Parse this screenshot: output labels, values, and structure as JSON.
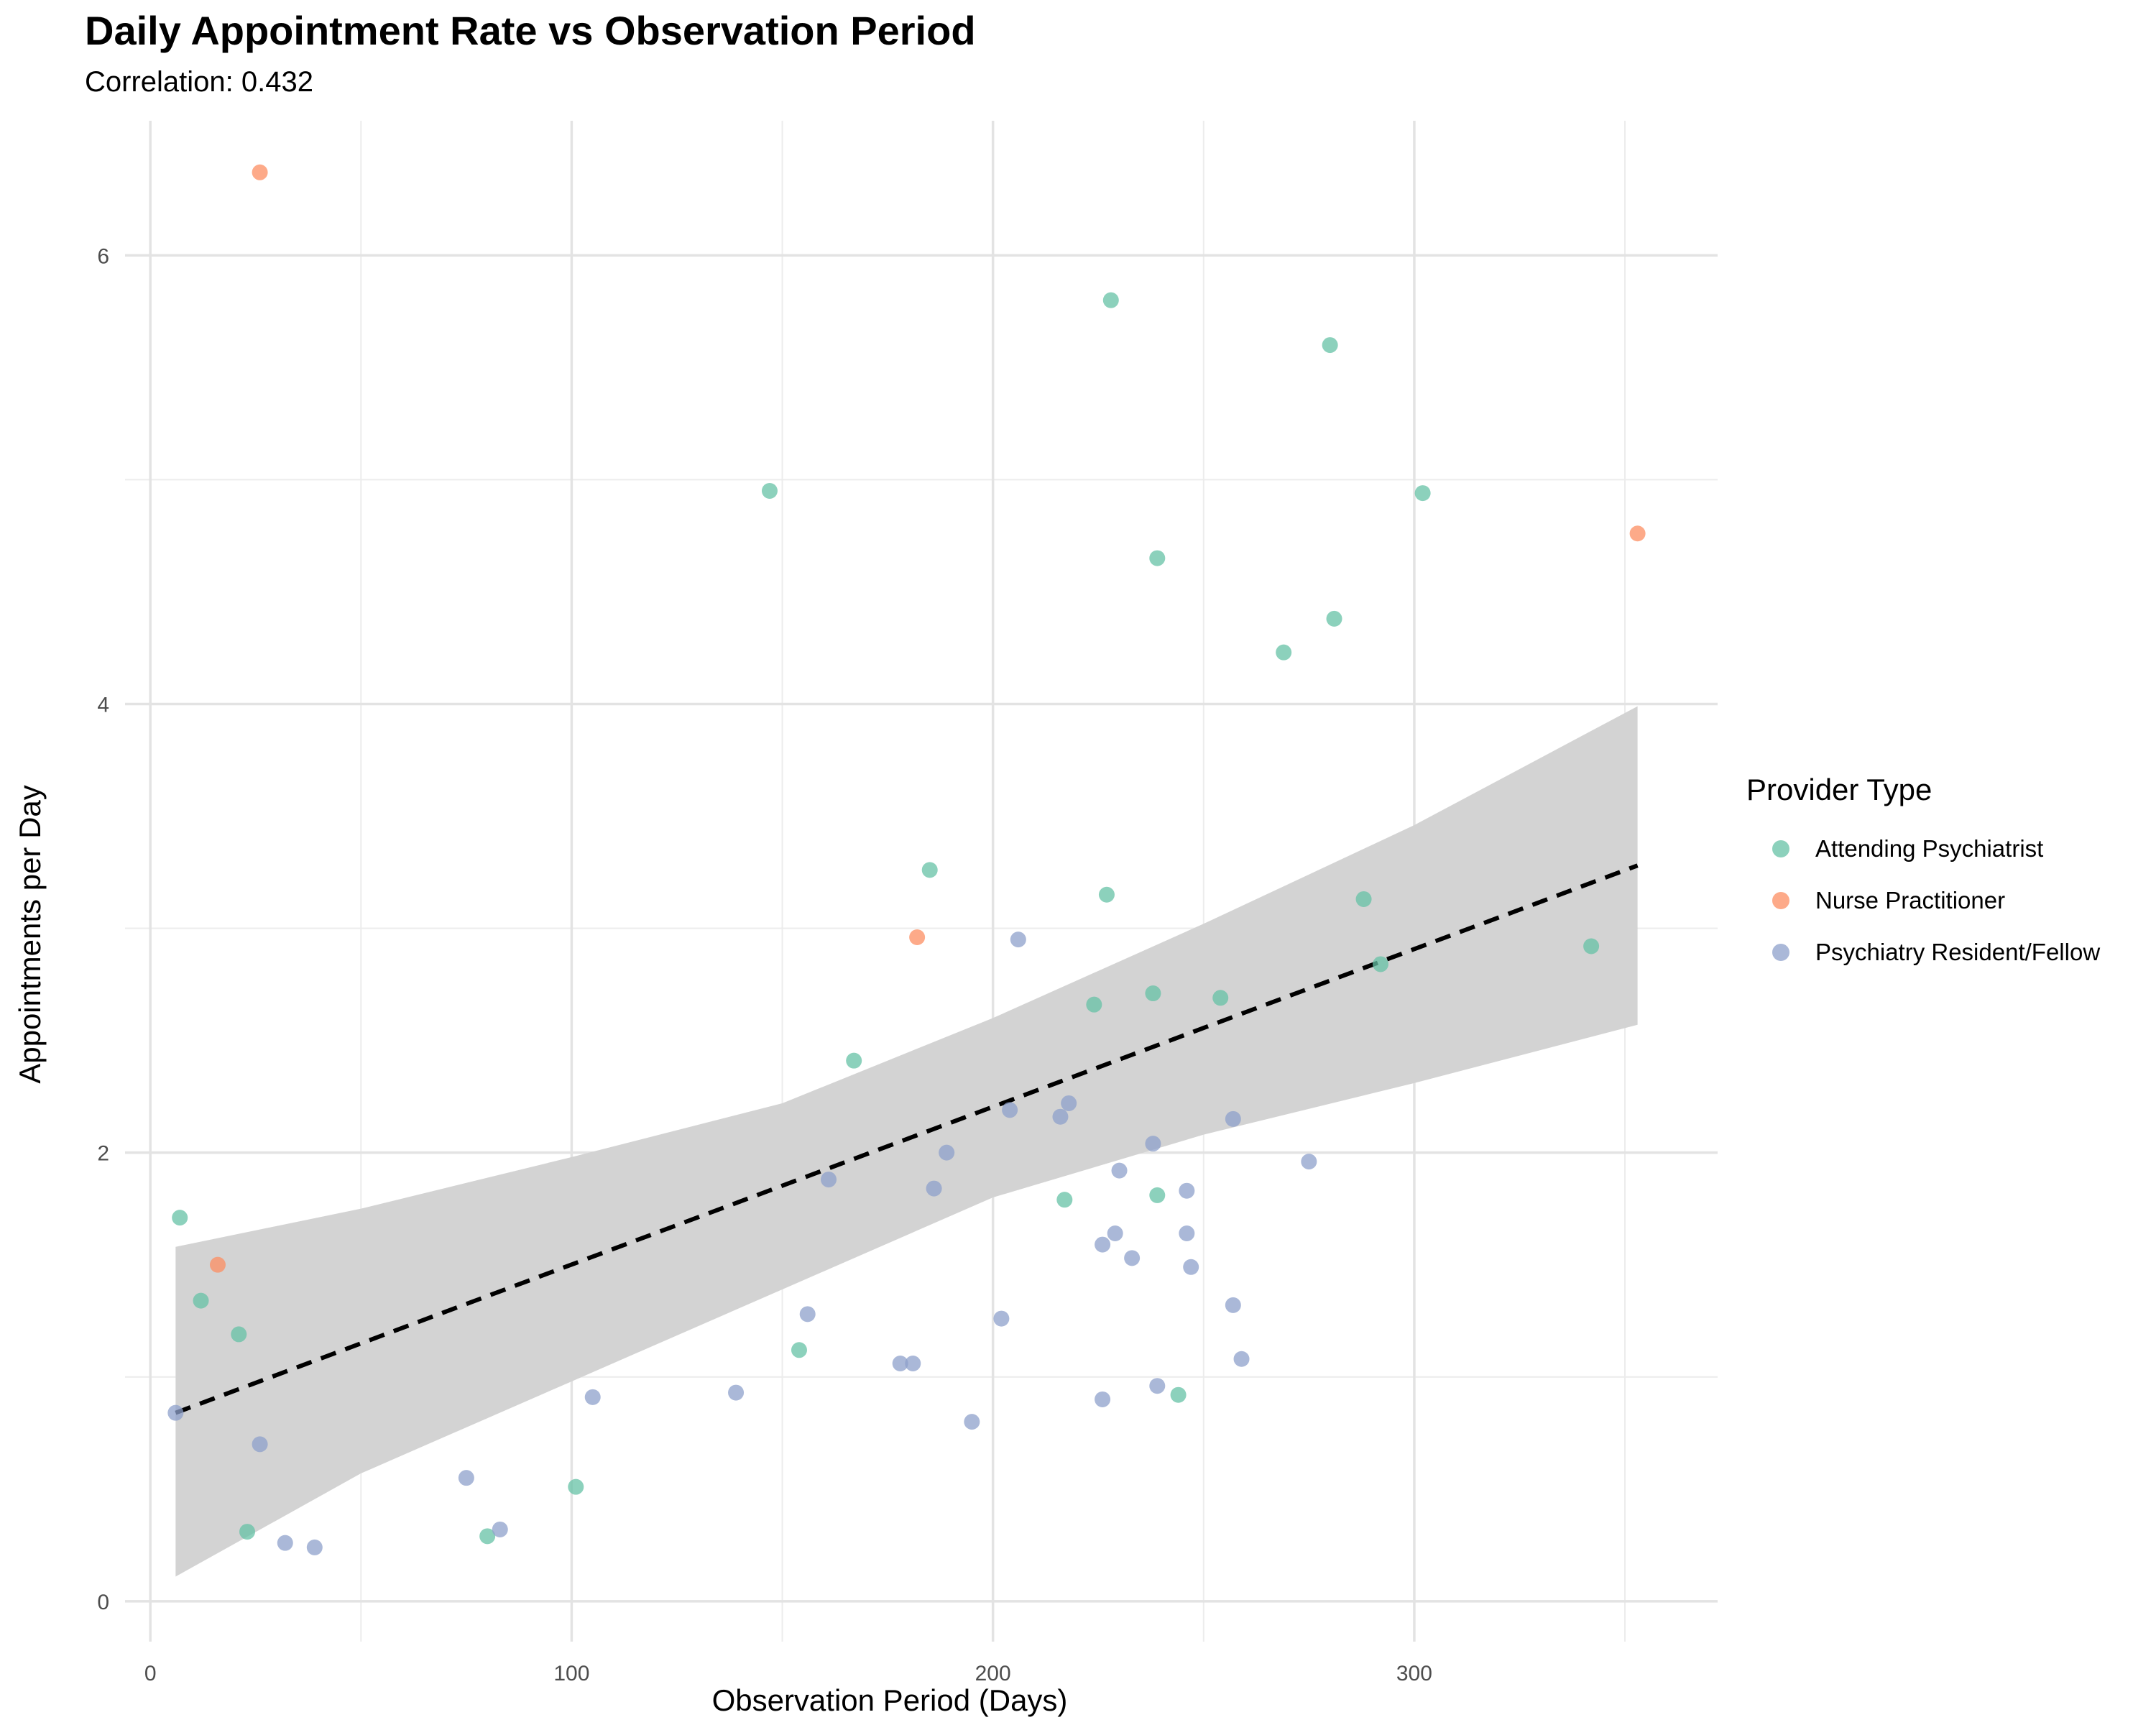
{
  "chart_data": {
    "type": "scatter",
    "title": "Daily Appointment Rate vs Observation Period",
    "subtitle": "Correlation: 0.432",
    "xlabel": "Observation Period (Days)",
    "ylabel": "Appointments per Day",
    "xlim": [
      -6,
      372
    ],
    "ylim": [
      -0.18,
      6.6
    ],
    "x_ticks": [
      0,
      100,
      200,
      300
    ],
    "y_ticks": [
      0,
      2,
      4,
      6
    ],
    "grid": true,
    "legend": {
      "title": "Provider Type",
      "position": "right"
    },
    "series": [
      {
        "name": "Attending Psychiatrist",
        "color": "#66c2a5",
        "points": [
          [
            7,
            1.71
          ],
          [
            12,
            1.34
          ],
          [
            21,
            1.19
          ],
          [
            23,
            0.31
          ],
          [
            80,
            0.29
          ],
          [
            101,
            0.51
          ],
          [
            147,
            4.95
          ],
          [
            154,
            1.12
          ],
          [
            167,
            2.41
          ],
          [
            185,
            3.26
          ],
          [
            217,
            1.79
          ],
          [
            224,
            2.66
          ],
          [
            227,
            3.15
          ],
          [
            228,
            5.8
          ],
          [
            238,
            2.71
          ],
          [
            239,
            4.65
          ],
          [
            239,
            1.81
          ],
          [
            244,
            0.92
          ],
          [
            254,
            2.69
          ],
          [
            269,
            4.23
          ],
          [
            280,
            5.6
          ],
          [
            281,
            4.38
          ],
          [
            288,
            3.13
          ],
          [
            292,
            2.84
          ],
          [
            302,
            4.94
          ],
          [
            342,
            2.92
          ]
        ]
      },
      {
        "name": "Nurse Practitioner",
        "color": "#fc8d62",
        "points": [
          [
            16,
            1.5
          ],
          [
            26,
            6.37
          ],
          [
            182,
            2.96
          ],
          [
            353,
            4.76
          ]
        ]
      },
      {
        "name": "Psychiatry Resident/Fellow",
        "color": "#8da0cb",
        "points": [
          [
            6,
            0.84
          ],
          [
            26,
            0.7
          ],
          [
            32,
            0.26
          ],
          [
            39,
            0.24
          ],
          [
            75,
            0.55
          ],
          [
            83,
            0.32
          ],
          [
            105,
            0.91
          ],
          [
            139,
            0.93
          ],
          [
            156,
            1.28
          ],
          [
            161,
            1.88
          ],
          [
            178,
            1.06
          ],
          [
            181,
            1.06
          ],
          [
            186,
            1.84
          ],
          [
            189,
            2.0
          ],
          [
            195,
            0.8
          ],
          [
            202,
            1.26
          ],
          [
            204,
            2.19
          ],
          [
            206,
            2.95
          ],
          [
            216,
            2.16
          ],
          [
            218,
            2.22
          ],
          [
            226,
            1.59
          ],
          [
            226,
            0.9
          ],
          [
            229,
            1.64
          ],
          [
            230,
            1.92
          ],
          [
            233,
            1.53
          ],
          [
            238,
            2.04
          ],
          [
            239,
            0.96
          ],
          [
            246,
            1.83
          ],
          [
            246,
            1.64
          ],
          [
            247,
            1.49
          ],
          [
            257,
            2.15
          ],
          [
            257,
            1.32
          ],
          [
            259,
            1.08
          ],
          [
            275,
            1.96
          ]
        ]
      }
    ],
    "trend_line": {
      "style": "dashed",
      "color": "#000000",
      "x_start": 6,
      "y_start": 0.84,
      "x_end": 353,
      "y_end": 3.28
    },
    "confidence_band": {
      "color": "#d3d3d3",
      "x": [
        6,
        50,
        100,
        150,
        200,
        250,
        300,
        353
      ],
      "lower": [
        0.11,
        0.57,
        0.98,
        1.39,
        1.8,
        2.08,
        2.31,
        2.57
      ],
      "upper": [
        1.58,
        1.75,
        1.98,
        2.22,
        2.6,
        3.02,
        3.46,
        3.99
      ]
    }
  }
}
